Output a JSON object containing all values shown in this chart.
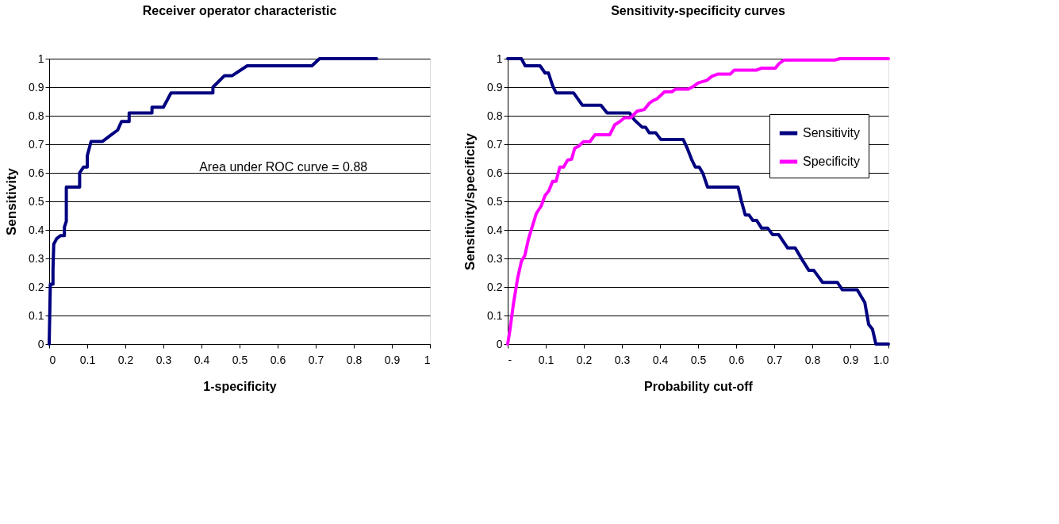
{
  "chart_data": [
    {
      "type": "line",
      "title": "Receiver operator characteristic",
      "xlabel": "1-specificity",
      "ylabel": "Sensitivity",
      "color": "#000080",
      "x": [
        0,
        0.003,
        0.01,
        0.01,
        0.012,
        0.02,
        0.03,
        0.04,
        0.04,
        0.045,
        0.045,
        0.08,
        0.08,
        0.09,
        0.1,
        0.1,
        0.11,
        0.14,
        0.16,
        0.18,
        0.19,
        0.21,
        0.21,
        0.27,
        0.27,
        0.3,
        0.32,
        0.43,
        0.43,
        0.46,
        0.48,
        0.52,
        0.69,
        0.71,
        0.86
      ],
      "values": [
        0,
        0.21,
        0.21,
        0.26,
        0.35,
        0.37,
        0.38,
        0.38,
        0.41,
        0.43,
        0.55,
        0.55,
        0.6,
        0.62,
        0.62,
        0.66,
        0.71,
        0.71,
        0.73,
        0.75,
        0.78,
        0.78,
        0.81,
        0.81,
        0.83,
        0.83,
        0.88,
        0.88,
        0.9,
        0.94,
        0.94,
        0.975,
        0.975,
        1,
        1
      ],
      "xlim": [
        0,
        1
      ],
      "ylim": [
        0,
        1
      ],
      "xticks": [
        0,
        0.1,
        0.2,
        0.3,
        0.4,
        0.5,
        0.6,
        0.7,
        0.8,
        0.9,
        1
      ],
      "yticks": [
        0,
        0.1,
        0.2,
        0.3,
        0.4,
        0.5,
        0.6,
        0.7,
        0.8,
        0.9,
        1
      ],
      "grid": "y",
      "annotations": [
        "Area under ROC curve = 0.88"
      ]
    },
    {
      "type": "line",
      "title": "Sensitivity-specificity curves",
      "xlabel": "Probability cut-off",
      "ylabel": "Sensitivity/specificity",
      "series": [
        {
          "name": "Sensitivity",
          "color": "#000080",
          "x": [
            0,
            0.036,
            0.046,
            0.085,
            0.098,
            0.107,
            0.118,
            0.127,
            0.173,
            0.196,
            0.245,
            0.261,
            0.32,
            0.333,
            0.353,
            0.362,
            0.372,
            0.389,
            0.402,
            0.461,
            0.471,
            0.484,
            0.493,
            0.503,
            0.513,
            0.525,
            0.605,
            0.614,
            0.624,
            0.634,
            0.644,
            0.654,
            0.667,
            0.683,
            0.696,
            0.712,
            0.735,
            0.755,
            0.775,
            0.791,
            0.804,
            0.814,
            0.827,
            0.866,
            0.879,
            0.918,
            0.938,
            0.948,
            0.958,
            0.967,
            1
          ],
          "values": [
            1,
            1,
            0.975,
            0.975,
            0.95,
            0.95,
            0.905,
            0.88,
            0.88,
            0.837,
            0.837,
            0.81,
            0.81,
            0.785,
            0.76,
            0.76,
            0.74,
            0.74,
            0.717,
            0.717,
            0.688,
            0.644,
            0.62,
            0.62,
            0.597,
            0.55,
            0.55,
            0.5,
            0.452,
            0.452,
            0.433,
            0.433,
            0.406,
            0.406,
            0.383,
            0.383,
            0.337,
            0.337,
            0.292,
            0.258,
            0.258,
            0.24,
            0.216,
            0.216,
            0.19,
            0.19,
            0.145,
            0.069,
            0.052,
            0,
            0
          ]
        },
        {
          "name": "Specificity",
          "color": "#ff00ff",
          "x": [
            0,
            0.006,
            0.015,
            0.026,
            0.036,
            0.045,
            0.055,
            0.075,
            0.088,
            0.098,
            0.108,
            0.118,
            0.127,
            0.137,
            0.147,
            0.157,
            0.168,
            0.176,
            0.186,
            0.199,
            0.216,
            0.229,
            0.268,
            0.281,
            0.294,
            0.307,
            0.323,
            0.34,
            0.359,
            0.372,
            0.382,
            0.392,
            0.412,
            0.431,
            0.441,
            0.474,
            0.487,
            0.5,
            0.523,
            0.536,
            0.552,
            0.585,
            0.595,
            0.654,
            0.667,
            0.703,
            0.712,
            0.725,
            0.859,
            0.873,
            1
          ],
          "values": [
            0,
            0.05,
            0.14,
            0.23,
            0.29,
            0.31,
            0.37,
            0.457,
            0.484,
            0.52,
            0.537,
            0.57,
            0.57,
            0.62,
            0.62,
            0.644,
            0.648,
            0.686,
            0.693,
            0.709,
            0.709,
            0.733,
            0.733,
            0.768,
            0.779,
            0.793,
            0.793,
            0.816,
            0.822,
            0.844,
            0.853,
            0.859,
            0.884,
            0.884,
            0.893,
            0.893,
            0.902,
            0.915,
            0.924,
            0.938,
            0.946,
            0.946,
            0.96,
            0.96,
            0.967,
            0.967,
            0.982,
            0.995,
            0.995,
            1,
            1
          ]
        }
      ],
      "xlim": [
        0,
        1
      ],
      "ylim": [
        0,
        1
      ],
      "xticks": [
        {
          "value": 0,
          "label": "-"
        },
        0.1,
        0.2,
        0.3,
        0.4,
        0.5,
        0.6,
        0.7,
        0.8,
        0.9,
        {
          "value": 1,
          "label": "1.0"
        }
      ],
      "yticks": [
        0,
        0.1,
        0.2,
        0.3,
        0.4,
        0.5,
        0.6,
        0.7,
        0.8,
        0.9,
        1
      ],
      "grid": "y",
      "legend": "right"
    }
  ]
}
